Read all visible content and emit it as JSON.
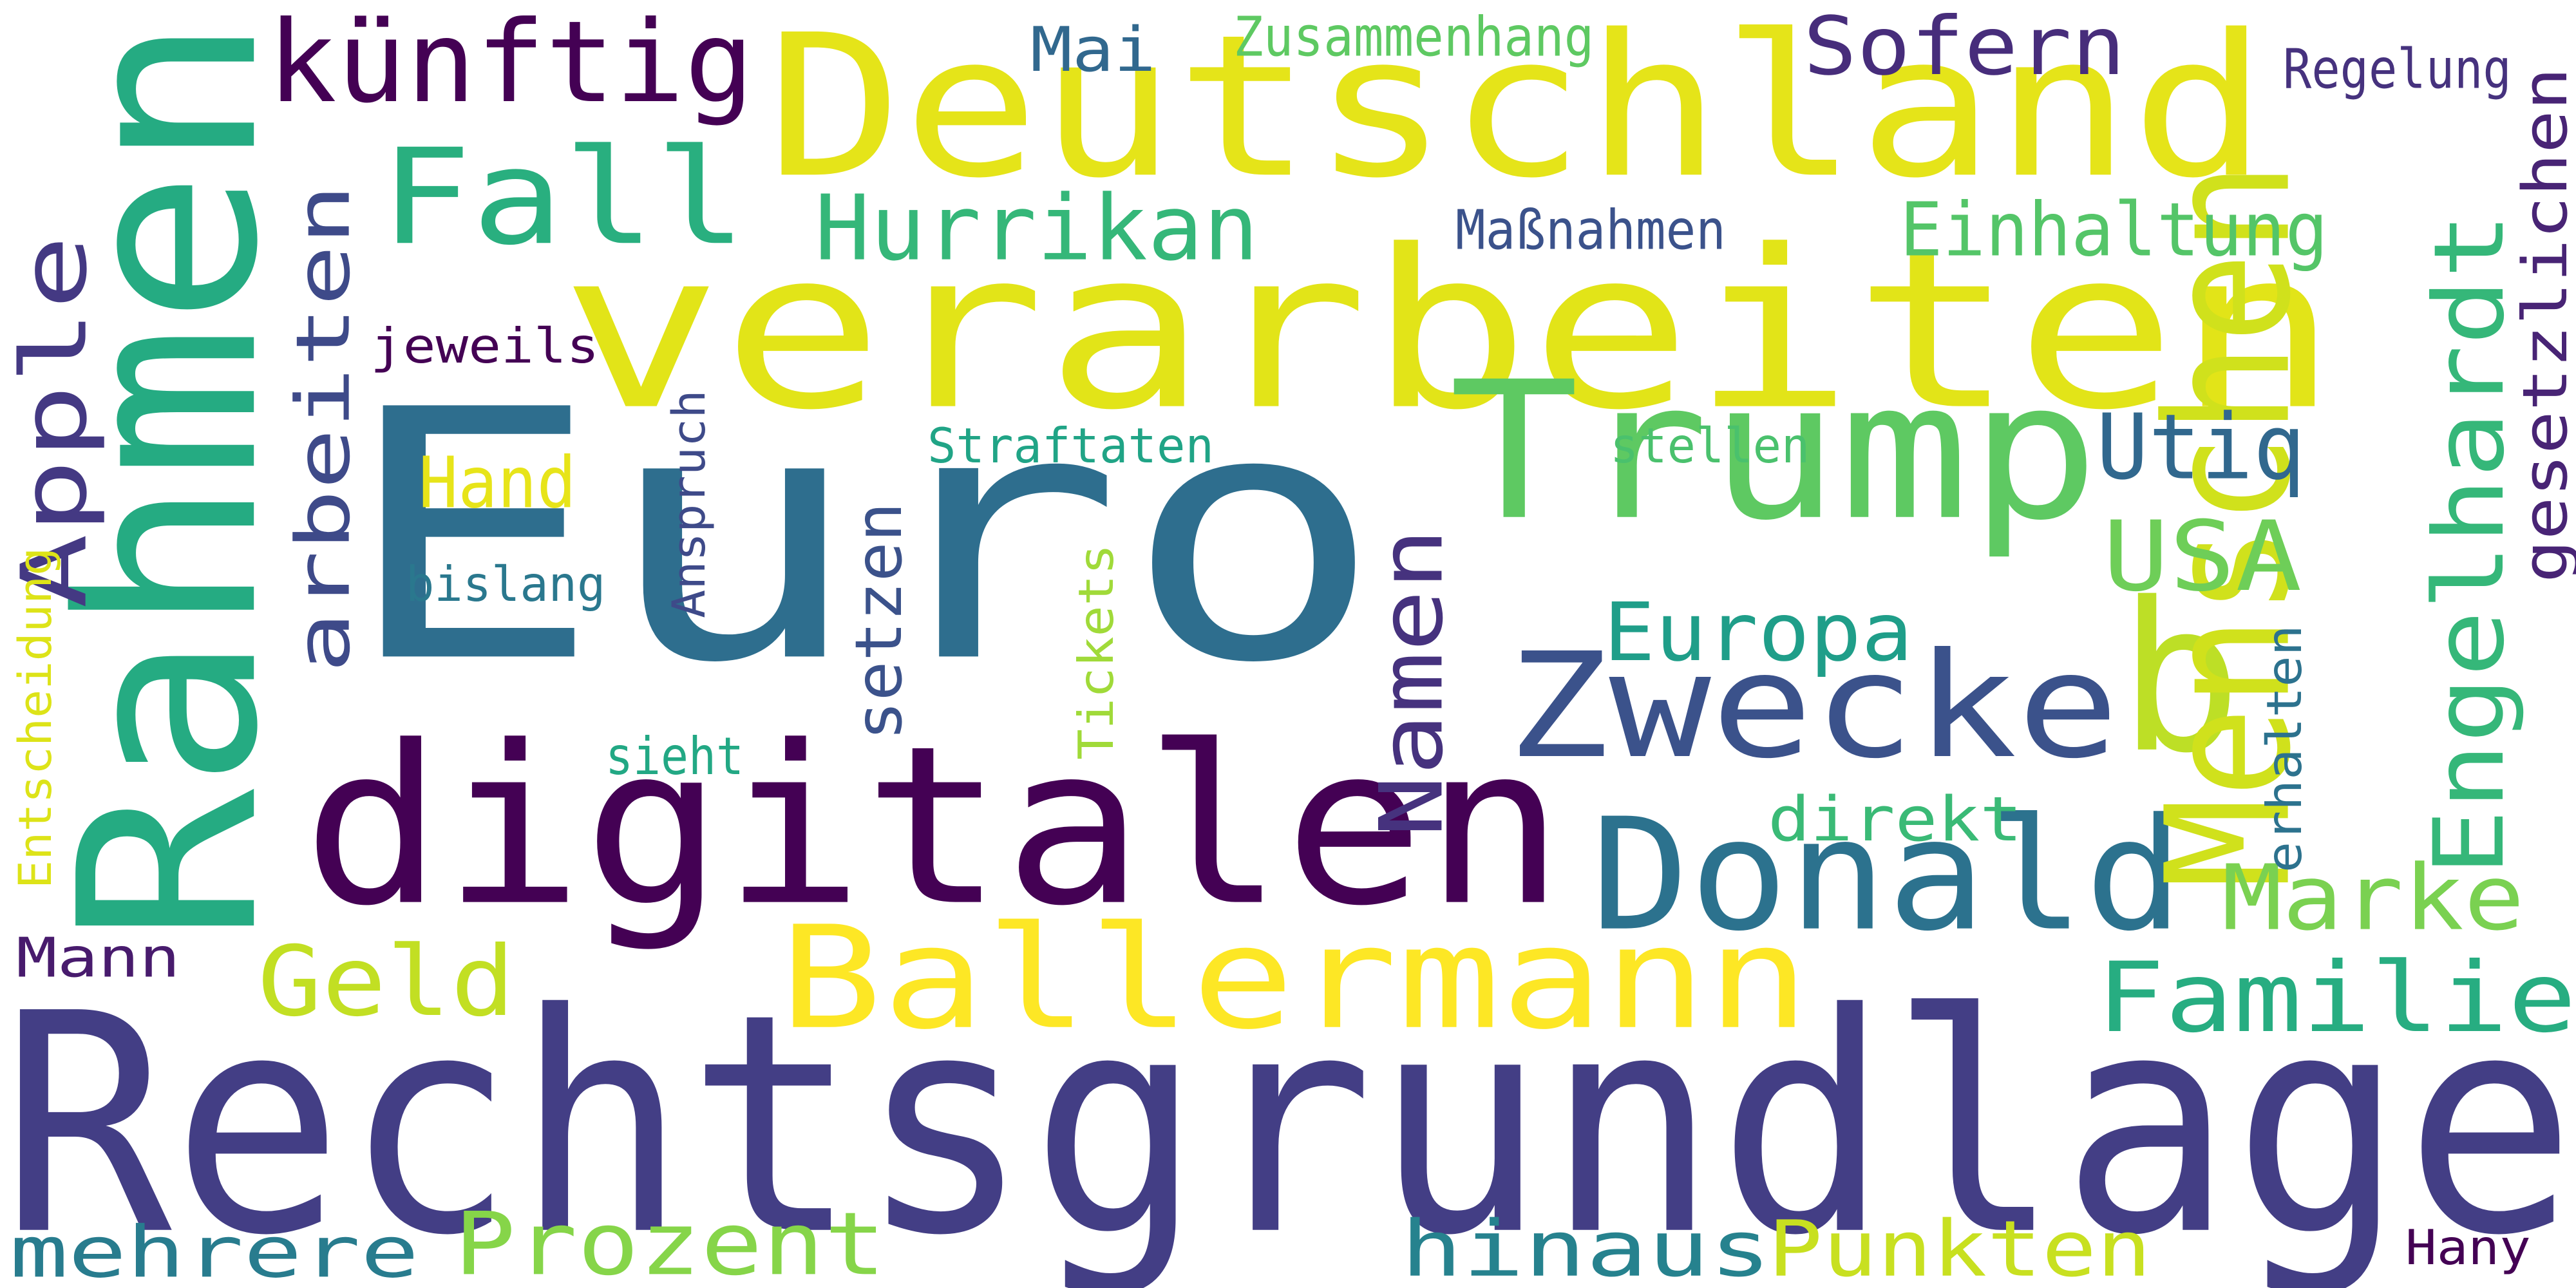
{
  "words": [
    {
      "id": "euro",
      "text": "Euro",
      "color": "#2e6e8e"
    },
    {
      "id": "rechtsgrundlage",
      "text": "Rechtsgrundlage",
      "color": "#433e85"
    },
    {
      "id": "verarbeiten",
      "text": "verarbeiten",
      "color": "#e2e418"
    },
    {
      "id": "deutschland",
      "text": "Deutschland",
      "color": "#e5e419"
    },
    {
      "id": "digitalen",
      "text": "digitalen",
      "color": "#440154"
    },
    {
      "id": "rahmen",
      "text": "Rahmen",
      "color": "#25ab82"
    },
    {
      "id": "trump",
      "text": "Trump",
      "color": "#5ec962"
    },
    {
      "id": "zwecke",
      "text": "Zwecke",
      "color": "#3b528b"
    },
    {
      "id": "donald",
      "text": "Donald",
      "color": "#2c728e"
    },
    {
      "id": "ballermann",
      "text": "Ballermann",
      "color": "#fde725"
    },
    {
      "id": "b",
      "text": "b",
      "color": "#bddf26"
    },
    {
      "id": "menschen",
      "text": "Menschen",
      "color": "#d0e11c"
    },
    {
      "id": "kuenftig",
      "text": "künftig",
      "color": "#440154"
    },
    {
      "id": "fall",
      "text": "Fall",
      "color": "#29af7f"
    },
    {
      "id": "engelhardt",
      "text": "Engelhardt",
      "color": "#35b779"
    },
    {
      "id": "hurrikan",
      "text": "Hurrikan",
      "color": "#35b779"
    },
    {
      "id": "sofern",
      "text": "Sofern",
      "color": "#472d7b"
    },
    {
      "id": "apple",
      "text": "Apple",
      "color": "#443983"
    },
    {
      "id": "arbeiten",
      "text": "arbeiten",
      "color": "#3e4a89"
    },
    {
      "id": "utiq",
      "text": "Utiq",
      "color": "#31688e"
    },
    {
      "id": "usa",
      "text": "USA",
      "color": "#6ece58"
    },
    {
      "id": "europa",
      "text": "Europa",
      "color": "#1f9e89"
    },
    {
      "id": "namen",
      "text": "Namen",
      "color": "#46327e"
    },
    {
      "id": "marke",
      "text": "Marke",
      "color": "#7ad151"
    },
    {
      "id": "familie",
      "text": "Familie",
      "color": "#27ad81"
    },
    {
      "id": "geld",
      "text": "Geld",
      "color": "#c2df23"
    },
    {
      "id": "prozent",
      "text": "Prozent",
      "color": "#86d549"
    },
    {
      "id": "mehrere",
      "text": "mehrere",
      "color": "#287c8e"
    },
    {
      "id": "hinaus",
      "text": "hinaus",
      "color": "#26828e"
    },
    {
      "id": "punkten",
      "text": "Punkten",
      "color": "#c8e020"
    },
    {
      "id": "einhaltung",
      "text": "Einhaltung",
      "color": "#54c568"
    },
    {
      "id": "gesetzlichen",
      "text": "gesetzlichen",
      "color": "#482475"
    },
    {
      "id": "setzen",
      "text": "setzen",
      "color": "#3b528b"
    },
    {
      "id": "hand",
      "text": "Hand",
      "color": "#e7e419"
    },
    {
      "id": "direkt",
      "text": "direkt",
      "color": "#3aba76"
    },
    {
      "id": "mann",
      "text": "Mann",
      "color": "#481b6d"
    },
    {
      "id": "mai",
      "text": "Mai",
      "color": "#31688e"
    },
    {
      "id": "zusammenhang",
      "text": "Zusammenhang",
      "color": "#5ec962"
    },
    {
      "id": "regelung",
      "text": "Regelung",
      "color": "#46327e"
    },
    {
      "id": "massnahmen",
      "text": "Maßnahmen",
      "color": "#3b528b"
    },
    {
      "id": "jeweils",
      "text": "jeweils",
      "color": "#440154"
    },
    {
      "id": "straftaten",
      "text": "Straftaten",
      "color": "#20a486"
    },
    {
      "id": "stellen",
      "text": "stellen",
      "color": "#4ac16d"
    },
    {
      "id": "anspruch",
      "text": "Anspruch",
      "color": "#3e4a89"
    },
    {
      "id": "bislang",
      "text": "bislang",
      "color": "#2a788e"
    },
    {
      "id": "tickets",
      "text": "Tickets",
      "color": "#a0da39"
    },
    {
      "id": "sieht",
      "text": "sieht",
      "color": "#22a884"
    },
    {
      "id": "erhalten",
      "text": "erhalten",
      "color": "#2c728e"
    },
    {
      "id": "entscheidung",
      "text": "Entscheidung",
      "color": "#dde318"
    },
    {
      "id": "hany",
      "text": "Hany",
      "color": "#440154"
    }
  ]
}
